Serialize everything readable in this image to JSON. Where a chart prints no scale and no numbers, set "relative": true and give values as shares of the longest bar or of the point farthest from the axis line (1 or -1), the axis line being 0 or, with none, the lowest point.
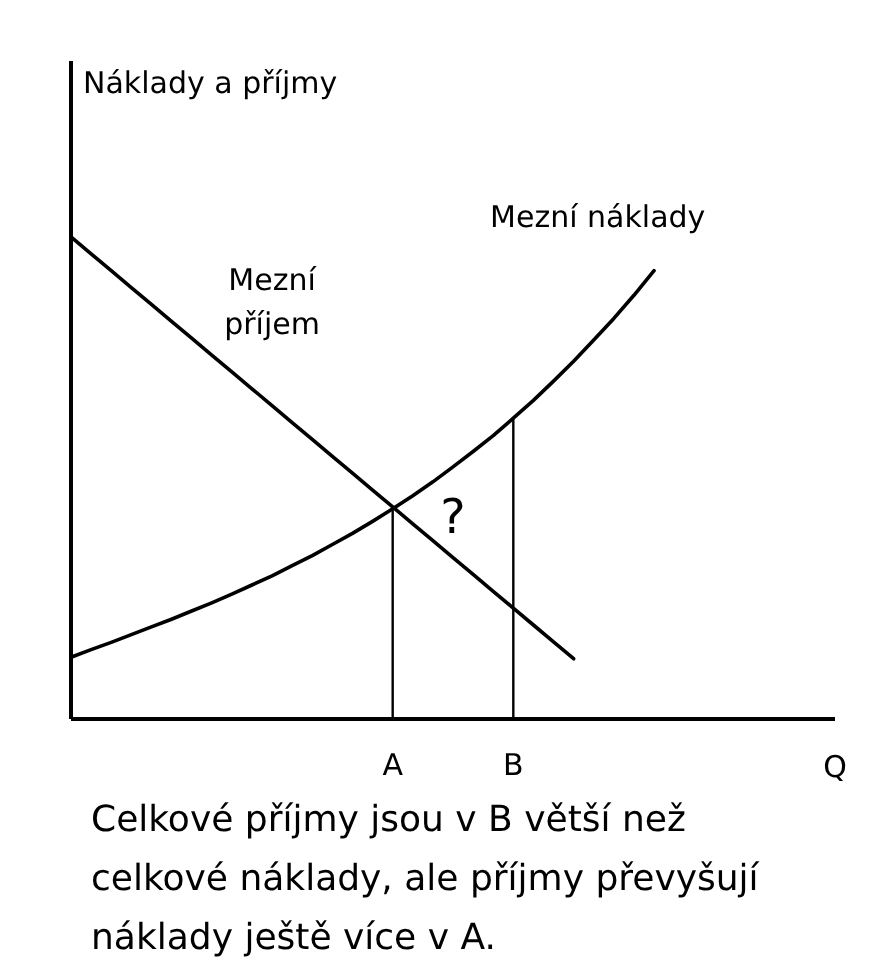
{
  "chart_data": {
    "type": "line",
    "relative": true,
    "ylabel": "Náklady a příjmy",
    "xlabel": "Q",
    "categories": [
      null,
      null,
      null,
      null,
      null,
      null,
      null,
      null,
      null,
      null,
      null,
      null,
      null,
      null,
      null,
      null,
      "A",
      null,
      null,
      null,
      null,
      null,
      "B",
      null,
      null,
      null,
      null,
      null,
      null,
      null,
      null,
      null,
      null,
      null,
      null,
      null,
      null,
      null,
      null
    ],
    "series": [
      {
        "name": "Mezní příjem",
        "color": "#000000",
        "values": [
          1.0,
          0.965,
          0.93,
          0.895,
          0.86,
          0.825,
          0.79,
          0.755,
          0.72,
          0.685,
          0.65,
          0.615,
          0.58,
          0.545,
          0.51,
          0.475,
          0.44,
          0.405,
          0.37,
          0.335,
          0.3,
          0.265,
          0.23,
          0.195,
          0.16,
          0.125,
          null,
          null,
          null,
          null,
          null,
          null,
          null,
          null,
          null,
          null,
          null,
          null,
          null
        ]
      },
      {
        "name": "Mezní náklady",
        "color": "#000000",
        "values": [
          0.128,
          0.144,
          0.159,
          0.175,
          0.191,
          0.207,
          0.224,
          0.241,
          0.259,
          0.278,
          0.297,
          0.318,
          0.339,
          0.362,
          0.385,
          0.41,
          0.436,
          0.463,
          0.492,
          0.523,
          0.555,
          0.588,
          0.624,
          0.661,
          0.701,
          0.742,
          0.786,
          0.831,
          0.879,
          0.93,
          null,
          null,
          null,
          null,
          null,
          null,
          null,
          null,
          null
        ]
      },
      {
        "color": "#000000",
        "x": [
          "A",
          "A"
        ],
        "values": [
          0,
          0.436
        ]
      },
      {
        "color": "#000000",
        "x": [
          "B",
          "B"
        ],
        "values": [
          0,
          0.624
        ]
      }
    ],
    "annotations": [
      "?",
      "Celkové příjmy jsou v B větší než celkové náklady, ale příjmy převyšují náklady ještě více v A."
    ],
    "grid": false,
    "line_style": "solid"
  }
}
